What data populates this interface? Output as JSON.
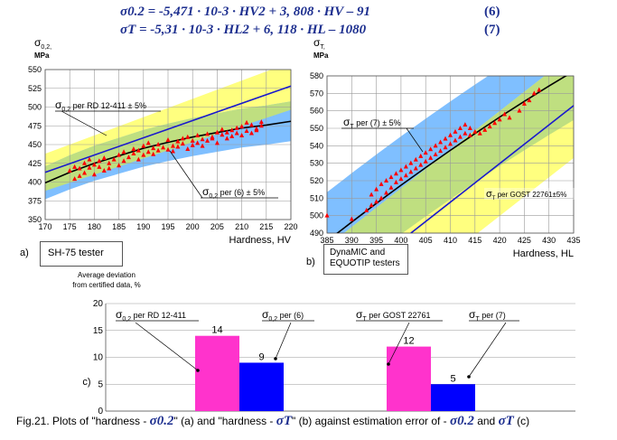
{
  "equations": {
    "eq6": "σ0.2 = -5,471 · 10-3 · HV2 + 3, 808 · HV – 91",
    "eq6_num": "(6)",
    "eq7": "σT = -5,31 · 10-3 · HL2 + 6, 118 · HL – 1080",
    "eq7_num": "(7)"
  },
  "colors": {
    "yellow_band": "#ffff7f",
    "blue_band": "#7fbfff",
    "green_overlap": "#bfdf80",
    "line_blue": "#1a1acc",
    "marker_red": "#ff0000",
    "bar_pink": "#ff33cc",
    "bar_blue": "#0000ff"
  },
  "chart_data": [
    {
      "type": "scatter",
      "panel_label": "a)",
      "tester_label": "SH-75 tester",
      "ylabel_symbol": "σ",
      "ylabel_sub": "0,2,",
      "ylabel_unit": "MPa",
      "xlabel": "Hardness, HV",
      "xlim": [
        170,
        220
      ],
      "ylim": [
        350,
        550
      ],
      "xticks": [
        "170",
        "175",
        "180",
        "185",
        "190",
        "195",
        "200",
        "205",
        "210",
        "215",
        "220"
      ],
      "yticks": [
        "350",
        "375",
        "400",
        "425",
        "450",
        "475",
        "500",
        "525",
        "550"
      ],
      "grid": true,
      "annotations": {
        "rd": "σ0,2 per RD 12-411 ± 5%",
        "eq": "σ0,2 per (6) ± 5%"
      },
      "series": [
        {
          "name": "σ0,2 per RD 12-411",
          "kind": "line",
          "x": [
            170,
            220
          ],
          "y": [
            413,
            528
          ]
        },
        {
          "name": "σ0,2 per (6)",
          "kind": "line",
          "x": [
            170,
            175,
            180,
            185,
            190,
            195,
            200,
            205,
            210,
            215,
            220
          ],
          "y": [
            399,
            413,
            425,
            435,
            445,
            453,
            460,
            466,
            472,
            476,
            481
          ]
        },
        {
          "kind": "points",
          "x": [
            175,
            176,
            176,
            177,
            177,
            178,
            178,
            179,
            179,
            180,
            180,
            181,
            181,
            182,
            182,
            183,
            183,
            184,
            185,
            185,
            186,
            186,
            187,
            188,
            188,
            189,
            189,
            190,
            190,
            191,
            191,
            192,
            192,
            193,
            193,
            194,
            195,
            195,
            196,
            196,
            197,
            197,
            198,
            198,
            199,
            199,
            200,
            200,
            201,
            201,
            202,
            202,
            203,
            203,
            204,
            204,
            205,
            205,
            206,
            206,
            207,
            207,
            208,
            208,
            209,
            209,
            210,
            210,
            211,
            211,
            212,
            212,
            213,
            213,
            214,
            214
          ],
          "y": [
            415,
            404,
            420,
            418,
            408,
            412,
            425,
            419,
            430,
            410,
            423,
            420,
            428,
            415,
            432,
            425,
            418,
            430,
            422,
            436,
            428,
            440,
            433,
            438,
            444,
            430,
            442,
            436,
            448,
            440,
            452,
            445,
            437,
            450,
            442,
            446,
            443,
            456,
            448,
            441,
            454,
            447,
            458,
            451,
            444,
            460,
            449,
            455,
            452,
            462,
            457,
            448,
            464,
            455,
            460,
            458,
            466,
            452,
            463,
            470,
            458,
            466,
            461,
            469,
            465,
            472,
            462,
            474,
            468,
            479,
            465,
            476,
            471,
            469,
            480,
            475
          ]
        }
      ]
    },
    {
      "type": "scatter",
      "panel_label": "b)",
      "tester_label_1": "DynaMIC and",
      "tester_label_2": "EQUOTIP testers",
      "ylabel_symbol": "σ",
      "ylabel_sub": "T,",
      "ylabel_unit": "MPa",
      "xlabel": "Hardness, HL",
      "xlim": [
        385,
        435
      ],
      "ylim": [
        490,
        580
      ],
      "xticks": [
        "385",
        "390",
        "395",
        "400",
        "405",
        "410",
        "415",
        "420",
        "425",
        "430",
        "435"
      ],
      "yticks": [
        "490",
        "500",
        "510",
        "520",
        "530",
        "540",
        "550",
        "560",
        "570",
        "580"
      ],
      "grid": true,
      "annotations": {
        "eq": "σT per (7) ± 5%",
        "gost": "σT per GOST 22761±5%"
      },
      "series": [
        {
          "name": "σT per (7)",
          "kind": "line",
          "x": [
            385,
            390,
            395,
            400,
            405,
            410,
            415,
            420,
            425,
            430,
            435
          ],
          "y": [
            485.4,
            496.3,
            507.0,
            517.4,
            527.5,
            537.4,
            547.0,
            556.4,
            565.4,
            574.2,
            582.7
          ]
        },
        {
          "name": "σT per GOST 22761",
          "kind": "line",
          "x": [
            402,
            435
          ],
          "y": [
            490,
            563
          ]
        },
        {
          "kind": "points",
          "x": [
            385,
            390,
            393,
            394,
            394,
            395,
            395,
            396,
            396,
            397,
            397,
            398,
            398,
            399,
            399,
            400,
            400,
            401,
            401,
            402,
            402,
            403,
            403,
            404,
            404,
            405,
            405,
            406,
            406,
            407,
            407,
            408,
            408,
            409,
            409,
            410,
            410,
            411,
            411,
            412,
            412,
            413,
            413,
            414,
            414,
            415,
            416,
            417,
            418,
            419,
            420,
            421,
            422,
            424,
            425,
            426,
            427,
            428
          ],
          "y": [
            500,
            498,
            503,
            512,
            506,
            508,
            515,
            510,
            518,
            513,
            520,
            516,
            522,
            519,
            524,
            521,
            526,
            523,
            528,
            525,
            530,
            527,
            532,
            529,
            534,
            531,
            536,
            533,
            538,
            535,
            540,
            537,
            542,
            539,
            544,
            541,
            546,
            543,
            548,
            545,
            550,
            547,
            552,
            546,
            550,
            548,
            547,
            549,
            551,
            553,
            555,
            558,
            556,
            560,
            564,
            566,
            570,
            572
          ]
        }
      ]
    },
    {
      "type": "bar",
      "panel_label": "c)",
      "ylabel_1": "Average deviation",
      "ylabel_2": "from certified data, %",
      "ylim": [
        0,
        20
      ],
      "yticks": [
        "0",
        "5",
        "10",
        "15",
        "20"
      ],
      "categories": [
        "σ0,2 per RD 12-411",
        "σ0,2 per (6)",
        "σT per GOST 22761",
        "σT per (7)"
      ],
      "values": [
        14,
        9,
        12,
        5
      ],
      "value_labels": [
        "14",
        "9",
        "12",
        "5"
      ],
      "callouts": [
        "σ0,2 per RD 12-411",
        "σ0,2 per (6)",
        "σT per GOST 22761",
        "σT per (7)"
      ]
    }
  ],
  "caption": {
    "p1": "Fig.21. Plots of \"hardness - ",
    "s1": "σ0.2",
    "p2": "\" (a) and \"hardness - ",
    "s2": "σT",
    "p3": "\" (b) against estimation error of  - ",
    "s3": "σ0.2",
    "p4": " and ",
    "s4": "σT",
    "p5": " (c)"
  }
}
